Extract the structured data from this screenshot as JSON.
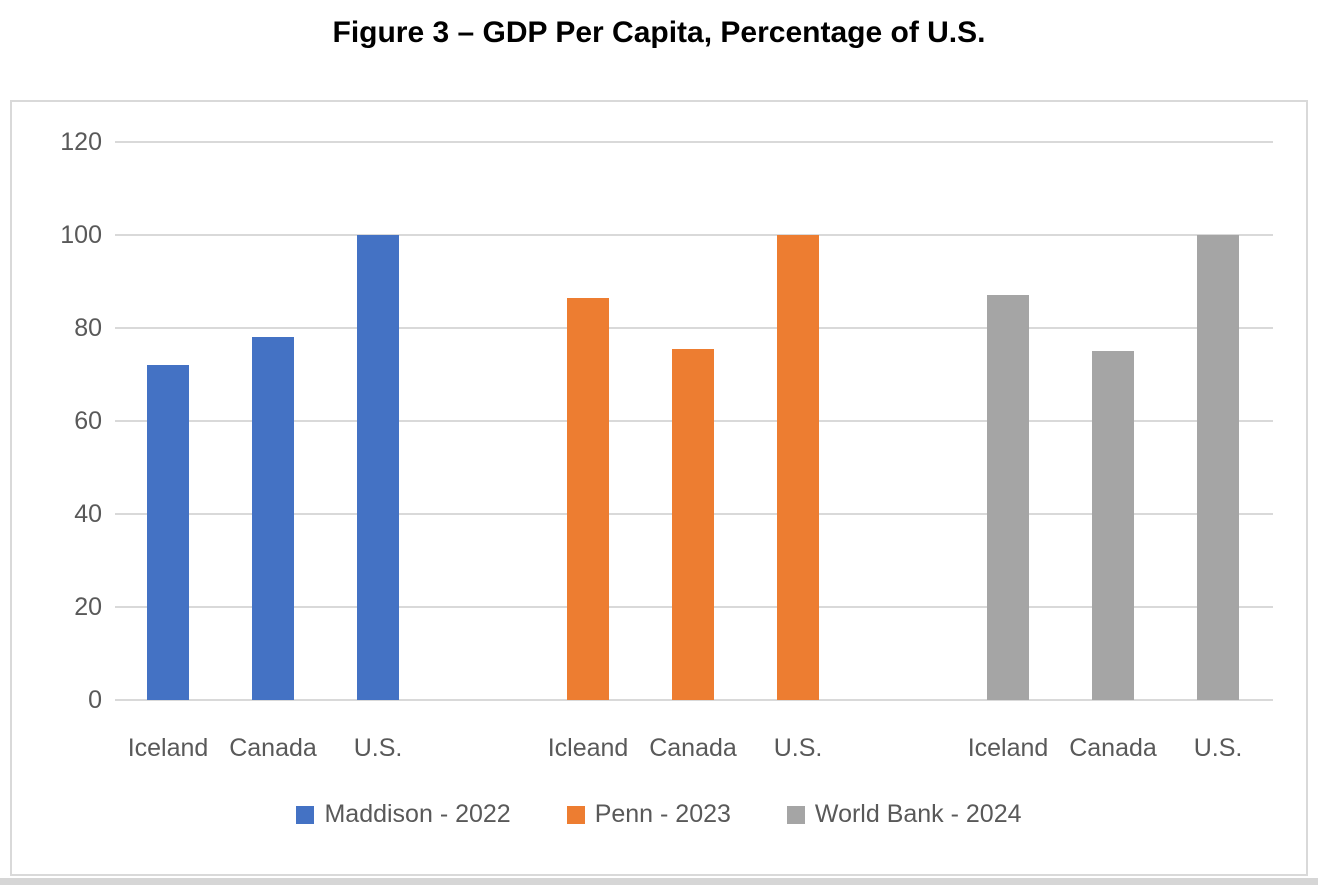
{
  "title": "Figure 3 – GDP Per Capita, Percentage of U.S.",
  "chart_data": {
    "type": "bar",
    "title": "Figure 3 – GDP Per Capita, Percentage of U.S.",
    "ylim": [
      0,
      120
    ],
    "yticks": [
      0,
      20,
      40,
      60,
      80,
      100,
      120
    ],
    "grid": true,
    "legend_position": "bottom",
    "series": [
      {
        "name": "Maddison - 2022",
        "color": "#4472C4",
        "categories": [
          "Iceland",
          "Canada",
          "U.S."
        ],
        "values": [
          72,
          78,
          100
        ]
      },
      {
        "name": "Penn - 2023",
        "color": "#ED7D31",
        "categories": [
          "Icleand",
          "Canada",
          "U.S."
        ],
        "values": [
          86.5,
          75.5,
          100
        ]
      },
      {
        "name": "World Bank - 2024",
        "color": "#A5A5A5",
        "categories": [
          "Iceland",
          "Canada",
          "U.S."
        ],
        "values": [
          87,
          75,
          100
        ]
      }
    ]
  },
  "colors": {
    "maddison_blue": "#4472C4",
    "penn_orange": "#ED7D31",
    "world_bank_gray": "#A5A5A5",
    "gridline": "#D9D9D9",
    "chart_border": "#D9D9D9",
    "axis_text": "#595959",
    "title_text": "#000000",
    "bottom_strip": "#D6D6D6"
  }
}
